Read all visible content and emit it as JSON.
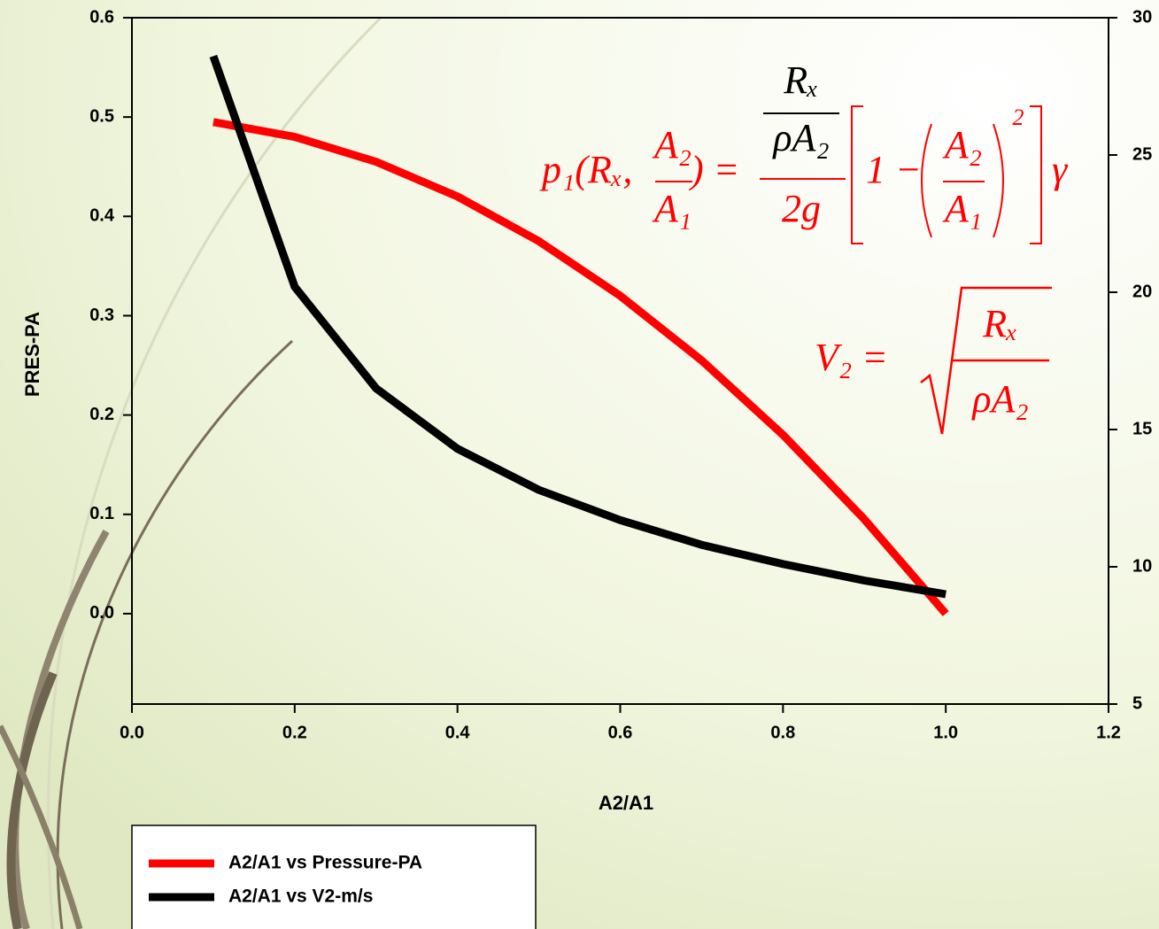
{
  "chart_data": {
    "type": "line",
    "x_label": "A2/A1",
    "y_label": "PRES-PA",
    "x": [
      0.1,
      0.2,
      0.3,
      0.4,
      0.5,
      0.6,
      0.7,
      0.8,
      0.9,
      1.0
    ],
    "series": [
      {
        "name": "A2/A1 vs Pressure-PA",
        "color": "#ff0000",
        "values": [
          0.495,
          0.48,
          0.455,
          0.42,
          0.375,
          0.32,
          0.255,
          0.18,
          0.095,
          0
        ]
      },
      {
        "name": "A2/A1 vs V2-m/s",
        "color": "#000000",
        "axis": "y2",
        "values": [
          28.6,
          20.2,
          16.5,
          14.3,
          12.8,
          11.7,
          10.8,
          10.1,
          9.5,
          9.0
        ]
      }
    ],
    "xlim": [
      0,
      1.2
    ],
    "xticks": [
      {
        "value": 0,
        "label": "0.0"
      },
      0.2,
      0.4,
      0.6,
      0.8,
      {
        "value": 1,
        "label": "1.0"
      },
      1.2
    ],
    "ylim": [
      -0.091,
      0.6
    ],
    "yticks": [
      {
        "value": 0,
        "label": "0.0"
      },
      0.1,
      0.2,
      0.3,
      0.4,
      0.5,
      0.6
    ],
    "y2lim": [
      5,
      30
    ],
    "y2ticks": [
      5,
      10,
      15,
      20,
      25,
      30
    ],
    "legend": "bottom-left",
    "formula_pressure": {
      "color": "#ff0000",
      "inner_color": "#000000",
      "lhs": "p₁(Rₓ,",
      "lhs_num": "A₂",
      "lhs_den": "A₁",
      "equals": ") =",
      "num_top": "Rₓ",
      "num_bottom": "ρA₂",
      "den": "2g",
      "one_minus": "1 −",
      "inner_num": "A₂",
      "inner_den": "A₁",
      "exponent": "2",
      "factor": "γ"
    },
    "formula_velocity": {
      "color": "#ff0000",
      "lhs": "V₂ =",
      "num": "Rₓ",
      "den": "ρA₂"
    }
  }
}
